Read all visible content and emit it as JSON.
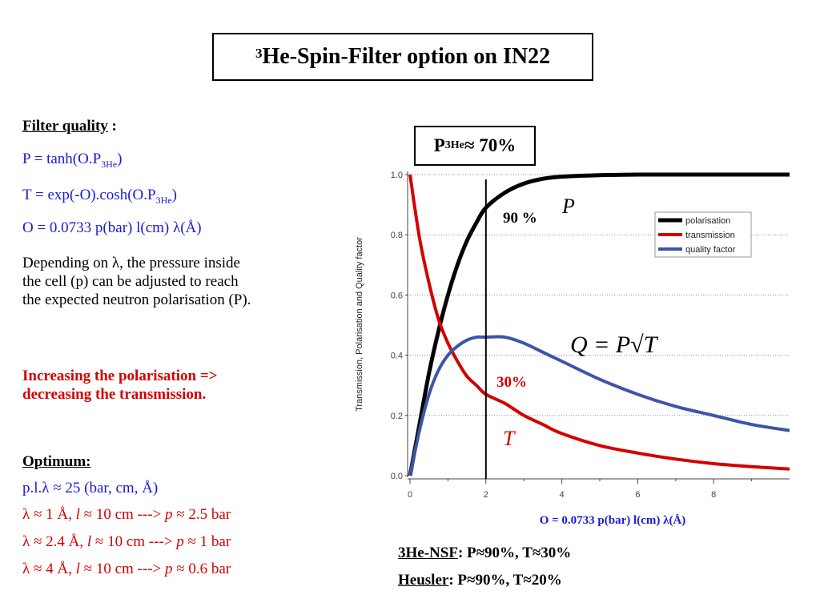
{
  "title": {
    "sup": "3",
    "text": "He-Spin-Filter option on IN22"
  },
  "left": {
    "filter_quality_label": "Filter quality",
    "filter_quality_colon": " :",
    "p_eq_pre": "P = tanh(O.P",
    "p_eq_sub": "3He",
    "p_eq_post": ")",
    "t_eq_pre": "T = exp(-O).cosh(O.P",
    "t_eq_sub": "3He",
    "t_eq_post": ")",
    "o_eq": "O = 0.0733 p(bar) l(cm) λ(Å)",
    "depending_1": "Depending on λ, the pressure inside",
    "depending_2": "the cell (p) can be adjusted to reach",
    "depending_3": "the expected neutron polarisation (P).",
    "increasing_1": "Increasing the polarisation =>",
    "increasing_2": "decreasing the transmission.",
    "optimum_label": "Optimum:",
    "opt_1": "p.l.λ ≈ 25 (bar, cm, Å)",
    "opt_2a": "λ ≈ 1 Å, ",
    "opt_2l": "l",
    "opt_2b": " ≈ 10 cm ---> ",
    "opt_2p": "p",
    "opt_2c": " ≈ 2.5 bar",
    "opt_3a": "λ ≈ 2.4 Å, ",
    "opt_3l": "l",
    "opt_3b": " ≈ 10 cm ---> ",
    "opt_3p": "p",
    "opt_3c": " ≈ 1 bar",
    "opt_4a": "λ ≈ 4 Å, ",
    "opt_4l": "l",
    "opt_4b": " ≈ 10 cm ---> ",
    "opt_4p": "p",
    "opt_4c": " ≈ 0.6 bar"
  },
  "p3he_box": {
    "pre": "P",
    "sub": "3He",
    "post": " ≈ 70%"
  },
  "bottom": {
    "nsf_label": "3He-NSF",
    "nsf_value": ": P≈90%, T≈30%",
    "heusler_label": "Heusler",
    "heusler_value": ": P≈90%, T≈20%"
  },
  "chart_data": {
    "type": "line",
    "ylabel": "Transmission, Polarisation and Quality factor",
    "xlabel": "O = 0.0733 p(bar) l(cm) λ(Å)",
    "xlim": [
      0,
      10
    ],
    "ylim": [
      0,
      1.0
    ],
    "x_ticks": [
      "0",
      "2",
      "4",
      "6",
      "8"
    ],
    "y_ticks": [
      "0.0",
      "0.2",
      "0.4",
      "0.6",
      "0.8",
      "1.0"
    ],
    "grid": "horizontal dotted",
    "legend_position": "top-right",
    "p3he": 0.7,
    "series": [
      {
        "name": "polarisation",
        "color": "#000000",
        "x": [
          0,
          0.25,
          0.5,
          0.75,
          1,
          1.25,
          1.5,
          1.75,
          2,
          2.5,
          3,
          3.5,
          4,
          5,
          6,
          7,
          8,
          9,
          10
        ],
        "y": [
          0,
          0.17,
          0.34,
          0.48,
          0.6,
          0.7,
          0.78,
          0.84,
          0.89,
          0.94,
          0.97,
          0.986,
          0.993,
          0.998,
          1.0,
          1.0,
          1.0,
          1.0,
          1.0
        ]
      },
      {
        "name": "transmission",
        "color": "#d40000",
        "x": [
          0,
          0.25,
          0.5,
          0.75,
          1,
          1.25,
          1.5,
          1.75,
          2,
          2.5,
          3,
          3.5,
          4,
          5,
          6,
          7,
          8,
          9,
          10
        ],
        "y": [
          1.0,
          0.79,
          0.64,
          0.52,
          0.44,
          0.38,
          0.33,
          0.3,
          0.27,
          0.24,
          0.2,
          0.17,
          0.14,
          0.1,
          0.075,
          0.055,
          0.04,
          0.03,
          0.022
        ]
      },
      {
        "name": "quality factor",
        "color": "#3d55a6",
        "x": [
          0,
          0.25,
          0.5,
          0.75,
          1,
          1.25,
          1.5,
          1.75,
          2,
          2.5,
          3,
          3.5,
          4,
          5,
          6,
          7,
          8,
          9,
          10
        ],
        "y": [
          0,
          0.15,
          0.27,
          0.35,
          0.4,
          0.43,
          0.45,
          0.46,
          0.46,
          0.46,
          0.44,
          0.41,
          0.38,
          0.32,
          0.27,
          0.23,
          0.2,
          0.17,
          0.15
        ]
      }
    ],
    "marker_line_x": 2,
    "annotations": {
      "p_90": "90 %",
      "p_sym": "P",
      "t_30": "30%",
      "t_sym": "T",
      "q_formula": "Q = P√T"
    }
  }
}
